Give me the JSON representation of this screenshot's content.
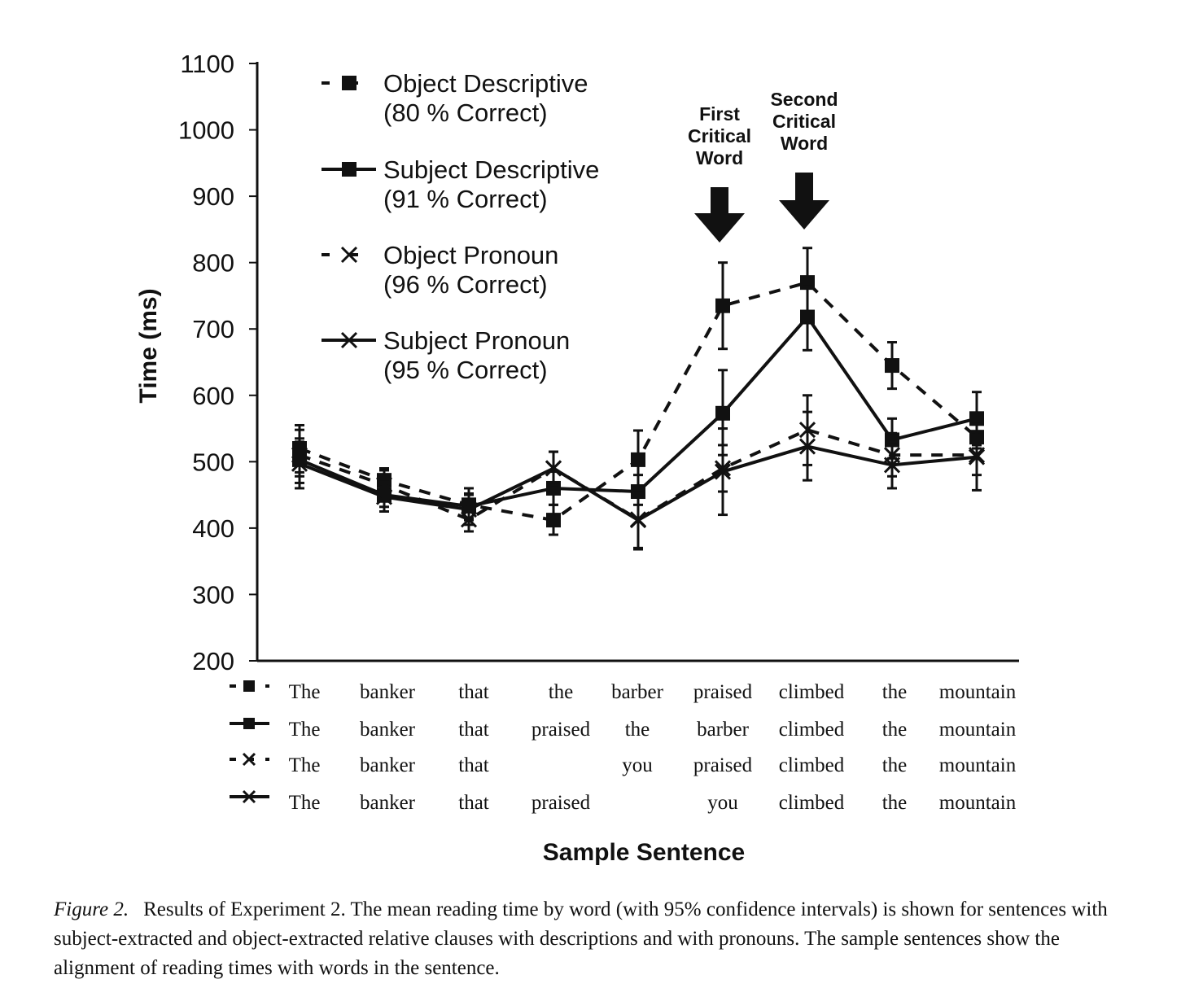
{
  "chart_data": {
    "type": "line",
    "ylabel": "Time (ms)",
    "xlabel": "Sample Sentence",
    "ylim": [
      200,
      1100
    ],
    "yticks": [
      200,
      300,
      400,
      500,
      600,
      700,
      800,
      900,
      1000,
      1100
    ],
    "legend_position": "top-left",
    "grid": false,
    "x": [
      1,
      2,
      3,
      4,
      5,
      6,
      7,
      8,
      9
    ],
    "series": [
      {
        "name": "Object Descriptive",
        "accuracy": "(80 % Correct)",
        "line": "dashed",
        "marker": "square",
        "values": [
          520,
          472,
          435,
          412,
          503,
          735,
          770,
          645,
          537
        ],
        "ci": [
          [
            484,
            555
          ],
          [
            450,
            490
          ],
          [
            412,
            460
          ],
          [
            390,
            435
          ],
          [
            460,
            547
          ],
          [
            670,
            800
          ],
          [
            720,
            822
          ],
          [
            610,
            680
          ],
          [
            520,
            560
          ]
        ],
        "words": [
          "The",
          "banker",
          "that",
          "the",
          "barber",
          "praised",
          "climbed",
          "the",
          "mountain"
        ]
      },
      {
        "name": "Subject Descriptive",
        "accuracy": "(91 % Correct)",
        "line": "solid",
        "marker": "square",
        "values": [
          503,
          450,
          433,
          460,
          455,
          573,
          718,
          533,
          565
        ],
        "ci": [
          [
            478,
            530
          ],
          [
            432,
            470
          ],
          [
            415,
            452
          ],
          [
            435,
            485
          ],
          [
            435,
            480
          ],
          [
            510,
            638
          ],
          [
            668,
            768
          ],
          [
            505,
            565
          ],
          [
            525,
            605
          ]
        ],
        "words": [
          "The",
          "banker",
          "that",
          "praised",
          "the",
          "barber",
          "climbed",
          "the",
          "mountain"
        ]
      },
      {
        "name": "Object Pronoun",
        "accuracy": "(96 % Correct)",
        "line": "dashed",
        "marker": "x",
        "values": [
          510,
          465,
          413,
          490,
          413,
          490,
          548,
          510,
          510
        ],
        "ci": [
          [
            468,
            548
          ],
          [
            440,
            487
          ],
          [
            395,
            432
          ],
          [
            465,
            515
          ],
          [
            368,
            460
          ],
          [
            455,
            525
          ],
          [
            495,
            600
          ],
          [
            478,
            543
          ],
          [
            480,
            545
          ]
        ],
        "words": [
          "The",
          "banker",
          "that",
          "",
          "you",
          "praised",
          "climbed",
          "the",
          "mountain"
        ]
      },
      {
        "name": "Subject Pronoun",
        "accuracy": "(95 % Correct)",
        "line": "solid",
        "marker": "x",
        "values": [
          497,
          447,
          428,
          490,
          412,
          485,
          523,
          495,
          507
        ],
        "ci": [
          [
            460,
            535
          ],
          [
            425,
            470
          ],
          [
            405,
            450
          ],
          [
            465,
            515
          ],
          [
            370,
            458
          ],
          [
            420,
            550
          ],
          [
            472,
            575
          ],
          [
            460,
            530
          ],
          [
            457,
            557
          ]
        ],
        "words": [
          "The",
          "banker",
          "that",
          "praised",
          "",
          "you",
          "climbed",
          "the",
          "mountain"
        ]
      }
    ],
    "annotations": [
      {
        "x": 6,
        "text_lines": [
          "First",
          "Critical",
          "Word"
        ]
      },
      {
        "x": 7,
        "text_lines": [
          "Second",
          "Critical",
          "Word"
        ]
      }
    ]
  },
  "caption": {
    "label": "Figure 2.",
    "text": "Results of Experiment 2. The mean reading time by word (with 95% confidence intervals) is shown for sentences with subject-extracted and object-extracted relative clauses with descriptions and with pronouns. The sample sentences show the alignment of reading times with words in the sentence."
  }
}
